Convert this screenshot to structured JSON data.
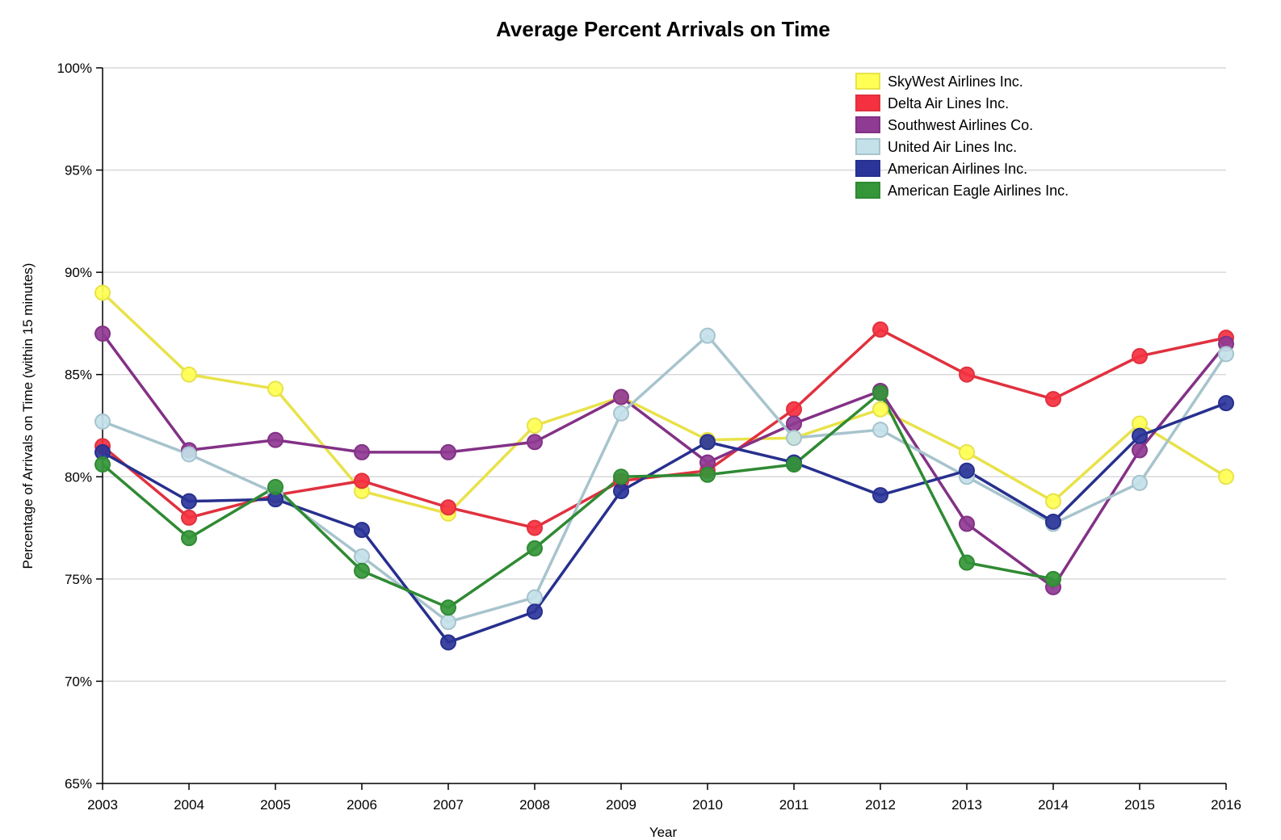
{
  "chart_data": {
    "type": "line",
    "title": "Average Percent Arrivals on Time",
    "xlabel": "Year",
    "ylabel": "Percentage of Arrivals on Time (within 15 minutes)",
    "x": [
      2003,
      2004,
      2005,
      2006,
      2007,
      2008,
      2009,
      2010,
      2011,
      2012,
      2013,
      2014,
      2015,
      2016
    ],
    "x_tick_labels": [
      "2003",
      "2004",
      "2005",
      "2006",
      "2007",
      "2008",
      "2009",
      "2010",
      "2011",
      "2012",
      "2013",
      "2014",
      "2015",
      "2016"
    ],
    "ylim": [
      65,
      100
    ],
    "y_ticks": [
      65,
      70,
      75,
      80,
      85,
      90,
      95,
      100
    ],
    "y_tick_labels": [
      "65%",
      "70%",
      "75%",
      "80%",
      "85%",
      "90%",
      "95%",
      "100%"
    ],
    "grid": "horizontal",
    "legend_position": "top-right",
    "series": [
      {
        "name": "SkyWest Airlines Inc.",
        "color": "#e8e24a",
        "point_color": "#ffff55",
        "values": [
          89.0,
          85.0,
          84.3,
          79.3,
          78.2,
          82.5,
          83.9,
          81.8,
          81.9,
          83.3,
          81.2,
          78.8,
          82.6,
          80.0
        ]
      },
      {
        "name": "Delta Air Lines Inc.",
        "color": "#e0313f",
        "point_color": "#f5303f",
        "values": [
          81.5,
          78.0,
          79.1,
          79.8,
          78.5,
          77.5,
          79.8,
          80.3,
          83.3,
          87.2,
          85.0,
          83.8,
          85.9,
          86.8
        ]
      },
      {
        "name": "Southwest Airlines Co.",
        "color": "#833186",
        "point_color": "#8f3a93",
        "values": [
          87.0,
          81.3,
          81.8,
          81.2,
          81.2,
          81.7,
          83.9,
          80.7,
          82.6,
          84.2,
          77.7,
          74.6,
          81.3,
          86.5
        ]
      },
      {
        "name": "United Air Lines Inc.",
        "color": "#a7c4cd",
        "point_color": "#c4e1ea",
        "values": [
          82.7,
          81.1,
          79.2,
          76.1,
          72.9,
          74.1,
          83.1,
          86.9,
          81.9,
          82.3,
          80.0,
          77.7,
          79.7,
          86.0
        ]
      },
      {
        "name": "American Airlines Inc.",
        "color": "#27308e",
        "point_color": "#2b3599",
        "values": [
          81.2,
          78.8,
          78.9,
          77.4,
          71.9,
          73.4,
          79.3,
          81.7,
          80.7,
          79.1,
          80.3,
          77.8,
          82.0,
          83.6
        ]
      },
      {
        "name": "American Eagle Airlines Inc.",
        "color": "#2f8a33",
        "point_color": "#349638",
        "values": [
          80.6,
          77.0,
          79.5,
          75.4,
          73.6,
          76.5,
          80.0,
          80.1,
          80.6,
          84.1,
          75.8,
          75.0,
          null,
          null
        ]
      }
    ]
  }
}
